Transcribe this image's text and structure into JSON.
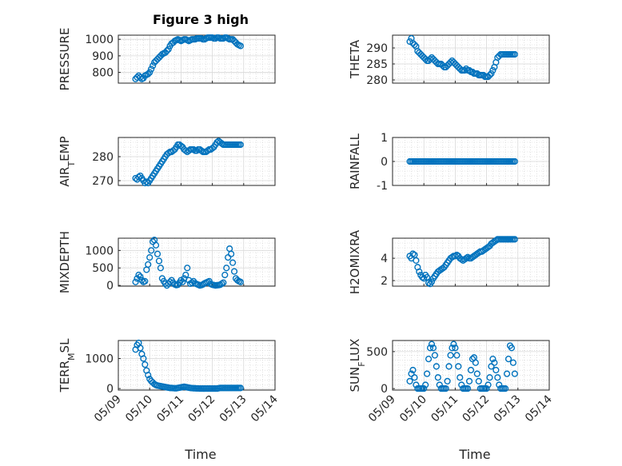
{
  "figure_title": "Figure 3 high",
  "x_axis_label": "Time",
  "marker_color": "#0072bd",
  "x_tick_labels": [
    "05/09",
    "05/10",
    "05/11",
    "05/12",
    "05/13",
    "05/14"
  ],
  "chart_data": [
    {
      "type": "scatter",
      "ylabel": "PRESSURE",
      "xlim": [
        0,
        5
      ],
      "ylim": [
        735,
        1025
      ],
      "yticks": [
        800,
        900,
        1000
      ],
      "x": [
        0.55,
        0.6,
        0.65,
        0.7,
        0.75,
        0.8,
        0.85,
        0.9,
        0.95,
        1.0,
        1.05,
        1.1,
        1.15,
        1.2,
        1.25,
        1.3,
        1.35,
        1.4,
        1.45,
        1.5,
        1.55,
        1.6,
        1.65,
        1.7,
        1.75,
        1.8,
        1.85,
        1.9,
        1.95,
        2.0,
        2.05,
        2.1,
        2.15,
        2.2,
        2.25,
        2.3,
        2.35,
        2.4,
        2.45,
        2.5,
        2.55,
        2.6,
        2.65,
        2.7,
        2.75,
        2.8,
        2.85,
        2.9,
        2.95,
        3.0,
        3.05,
        3.1,
        3.15,
        3.2,
        3.25,
        3.3,
        3.35,
        3.4,
        3.45,
        3.5,
        3.55,
        3.6,
        3.65,
        3.7,
        3.75,
        3.8,
        3.85,
        3.9
      ],
      "y": [
        760,
        770,
        780,
        770,
        760,
        765,
        780,
        785,
        790,
        800,
        820,
        840,
        860,
        870,
        880,
        890,
        900,
        910,
        915,
        920,
        930,
        940,
        960,
        975,
        980,
        990,
        995,
        1000,
        995,
        990,
        995,
        1000,
        1000,
        995,
        990,
        995,
        1000,
        1000,
        1000,
        1005,
        1005,
        1005,
        1005,
        1000,
        1000,
        1005,
        1010,
        1010,
        1010,
        1010,
        1005,
        1005,
        1010,
        1010,
        1005,
        1005,
        1005,
        1010,
        1010,
        1005,
        1000,
        1000,
        1000,
        990,
        980,
        970,
        965,
        960
      ]
    },
    {
      "type": "scatter",
      "ylabel": "THETA",
      "xlim": [
        0,
        5
      ],
      "ylim": [
        279,
        294
      ],
      "yticks": [
        280,
        285,
        290
      ],
      "x": [
        0.55,
        0.6,
        0.65,
        0.7,
        0.75,
        0.8,
        0.85,
        0.9,
        0.95,
        1.0,
        1.05,
        1.1,
        1.15,
        1.2,
        1.25,
        1.3,
        1.35,
        1.4,
        1.45,
        1.5,
        1.55,
        1.6,
        1.65,
        1.7,
        1.75,
        1.8,
        1.85,
        1.9,
        1.95,
        2.0,
        2.05,
        2.1,
        2.15,
        2.2,
        2.25,
        2.3,
        2.35,
        2.4,
        2.45,
        2.5,
        2.55,
        2.6,
        2.65,
        2.7,
        2.75,
        2.8,
        2.85,
        2.9,
        2.95,
        3.0,
        3.05,
        3.1,
        3.15,
        3.2,
        3.25,
        3.3,
        3.35,
        3.4,
        3.45,
        3.5,
        3.55,
        3.6,
        3.65,
        3.7,
        3.75,
        3.8,
        3.85,
        3.9
      ],
      "y": [
        292,
        293,
        291.5,
        291,
        290.5,
        289,
        288.5,
        288,
        287.5,
        287,
        286.5,
        286,
        286,
        286.5,
        287,
        286.5,
        286,
        285.5,
        285,
        285,
        285,
        284.5,
        284,
        284,
        284.5,
        285,
        285.5,
        286,
        285.5,
        285,
        284.5,
        284,
        283.5,
        283,
        283,
        283,
        283.5,
        283,
        283,
        282.5,
        282.5,
        282,
        282,
        282,
        281.5,
        281.5,
        281.5,
        281.5,
        281,
        281,
        281,
        281.5,
        282,
        283,
        284,
        285.5,
        287,
        287.5,
        288,
        288,
        288,
        288,
        288,
        288,
        288,
        288,
        288,
        288
      ]
    },
    {
      "type": "scatter",
      "ylabel": "AIR_TEMP",
      "xlim": [
        0,
        5
      ],
      "ylim": [
        268,
        288
      ],
      "yticks": [
        270,
        280
      ],
      "x": [
        0.55,
        0.6,
        0.65,
        0.7,
        0.75,
        0.8,
        0.85,
        0.9,
        0.95,
        1.0,
        1.05,
        1.1,
        1.15,
        1.2,
        1.25,
        1.3,
        1.35,
        1.4,
        1.45,
        1.5,
        1.55,
        1.6,
        1.65,
        1.7,
        1.75,
        1.8,
        1.85,
        1.9,
        1.95,
        2.0,
        2.05,
        2.1,
        2.15,
        2.2,
        2.25,
        2.3,
        2.35,
        2.4,
        2.45,
        2.5,
        2.55,
        2.6,
        2.65,
        2.7,
        2.75,
        2.8,
        2.85,
        2.9,
        2.95,
        3.0,
        3.05,
        3.1,
        3.15,
        3.2,
        3.25,
        3.3,
        3.35,
        3.4,
        3.45,
        3.5,
        3.55,
        3.6,
        3.65,
        3.7,
        3.75,
        3.8,
        3.85,
        3.9
      ],
      "y": [
        271,
        270.5,
        271.5,
        272,
        271,
        270,
        269,
        269.5,
        269,
        270,
        271,
        272,
        273,
        274,
        275,
        276,
        277,
        278,
        279,
        280,
        281,
        281.5,
        282,
        282,
        282.5,
        283,
        284,
        285,
        285,
        284.5,
        284,
        283,
        282.5,
        282,
        282.5,
        283,
        283,
        283,
        282.5,
        282.5,
        283,
        283,
        282.5,
        282,
        282,
        282,
        282.5,
        283,
        283,
        283.5,
        284,
        285,
        286,
        286.5,
        286,
        285.5,
        285,
        285,
        285,
        285,
        285,
        285,
        285,
        285,
        285,
        285,
        285,
        285
      ]
    },
    {
      "type": "scatter",
      "ylabel": "RAINFALL",
      "xlim": [
        0,
        5
      ],
      "ylim": [
        -1,
        1
      ],
      "yticks": [
        -1,
        0,
        1
      ],
      "x": [
        0.55,
        0.6,
        0.65,
        0.7,
        0.75,
        0.8,
        0.85,
        0.9,
        0.95,
        1.0,
        1.05,
        1.1,
        1.15,
        1.2,
        1.25,
        1.3,
        1.35,
        1.4,
        1.45,
        1.5,
        1.55,
        1.6,
        1.65,
        1.7,
        1.75,
        1.8,
        1.85,
        1.9,
        1.95,
        2.0,
        2.05,
        2.1,
        2.15,
        2.2,
        2.25,
        2.3,
        2.35,
        2.4,
        2.45,
        2.5,
        2.55,
        2.6,
        2.65,
        2.7,
        2.75,
        2.8,
        2.85,
        2.9,
        2.95,
        3.0,
        3.05,
        3.1,
        3.15,
        3.2,
        3.25,
        3.3,
        3.35,
        3.4,
        3.45,
        3.5,
        3.55,
        3.6,
        3.65,
        3.7,
        3.75,
        3.8,
        3.85,
        3.9
      ],
      "y": [
        0,
        0,
        0,
        0,
        0,
        0,
        0,
        0,
        0,
        0,
        0,
        0,
        0,
        0,
        0,
        0,
        0,
        0,
        0,
        0,
        0,
        0,
        0,
        0,
        0,
        0,
        0,
        0,
        0,
        0,
        0,
        0,
        0,
        0,
        0,
        0,
        0,
        0,
        0,
        0,
        0,
        0,
        0,
        0,
        0,
        0,
        0,
        0,
        0,
        0,
        0,
        0,
        0,
        0,
        0,
        0,
        0,
        0,
        0,
        0,
        0,
        0,
        0,
        0,
        0,
        0,
        0,
        0
      ]
    },
    {
      "type": "scatter",
      "ylabel": "MIXDEPTH",
      "xlim": [
        0,
        5
      ],
      "ylim": [
        -20,
        1350
      ],
      "yticks": [
        0,
        500,
        1000
      ],
      "x": [
        0.55,
        0.6,
        0.65,
        0.7,
        0.75,
        0.8,
        0.85,
        0.9,
        0.95,
        1.0,
        1.05,
        1.1,
        1.15,
        1.2,
        1.25,
        1.3,
        1.35,
        1.4,
        1.45,
        1.5,
        1.55,
        1.6,
        1.65,
        1.7,
        1.75,
        1.8,
        1.85,
        1.9,
        1.95,
        2.0,
        2.05,
        2.1,
        2.15,
        2.2,
        2.25,
        2.3,
        2.35,
        2.4,
        2.45,
        2.5,
        2.55,
        2.6,
        2.65,
        2.7,
        2.75,
        2.8,
        2.85,
        2.9,
        2.95,
        3.0,
        3.05,
        3.1,
        3.15,
        3.2,
        3.25,
        3.3,
        3.35,
        3.4,
        3.45,
        3.5,
        3.55,
        3.6,
        3.65,
        3.7,
        3.75,
        3.8,
        3.85,
        3.9
      ],
      "y": [
        100,
        200,
        300,
        250,
        150,
        100,
        120,
        450,
        600,
        800,
        1000,
        1250,
        1300,
        1150,
        900,
        700,
        500,
        200,
        120,
        50,
        0,
        50,
        100,
        150,
        80,
        30,
        10,
        20,
        80,
        150,
        100,
        200,
        300,
        500,
        150,
        50,
        80,
        120,
        60,
        40,
        20,
        0,
        10,
        30,
        60,
        80,
        100,
        120,
        40,
        20,
        10,
        0,
        5,
        10,
        20,
        50,
        80,
        300,
        500,
        800,
        1050,
        900,
        650,
        400,
        200,
        150,
        120,
        100
      ]
    },
    {
      "type": "scatter",
      "ylabel": "H2OMIXRA",
      "xlim": [
        0,
        5
      ],
      "ylim": [
        1.5,
        5.8
      ],
      "yticks": [
        2,
        4
      ],
      "x": [
        0.55,
        0.6,
        0.65,
        0.7,
        0.75,
        0.8,
        0.85,
        0.9,
        0.95,
        1.0,
        1.05,
        1.1,
        1.15,
        1.2,
        1.25,
        1.3,
        1.35,
        1.4,
        1.45,
        1.5,
        1.55,
        1.6,
        1.65,
        1.7,
        1.75,
        1.8,
        1.85,
        1.9,
        1.95,
        2.0,
        2.05,
        2.1,
        2.15,
        2.2,
        2.25,
        2.3,
        2.35,
        2.4,
        2.45,
        2.5,
        2.55,
        2.6,
        2.65,
        2.7,
        2.75,
        2.8,
        2.85,
        2.9,
        2.95,
        3.0,
        3.05,
        3.1,
        3.15,
        3.2,
        3.25,
        3.3,
        3.35,
        3.4,
        3.45,
        3.5,
        3.55,
        3.6,
        3.65,
        3.7,
        3.75,
        3.8,
        3.85,
        3.9
      ],
      "y": [
        4.2,
        4.0,
        4.4,
        4.3,
        3.8,
        3.2,
        2.8,
        2.5,
        2.3,
        2.2,
        2.5,
        2.3,
        1.8,
        1.7,
        1.9,
        2.2,
        2.4,
        2.6,
        2.8,
        2.9,
        3.0,
        3.1,
        3.2,
        3.4,
        3.6,
        3.8,
        4.0,
        4.1,
        4.2,
        4.2,
        4.3,
        4.2,
        4.0,
        3.9,
        3.8,
        3.9,
        4.0,
        4.1,
        4.0,
        4.0,
        4.1,
        4.2,
        4.3,
        4.4,
        4.5,
        4.6,
        4.6,
        4.7,
        4.8,
        4.9,
        5.0,
        5.1,
        5.3,
        5.4,
        5.5,
        5.6,
        5.7,
        5.7,
        5.7,
        5.7,
        5.7,
        5.7,
        5.7,
        5.7,
        5.7,
        5.7,
        5.7,
        5.7
      ]
    },
    {
      "type": "scatter",
      "ylabel": "TERR_MSL",
      "xlim": [
        0,
        5
      ],
      "ylim": [
        -50,
        1600
      ],
      "yticks": [
        0,
        1000
      ],
      "x": [
        0.55,
        0.6,
        0.65,
        0.7,
        0.75,
        0.8,
        0.85,
        0.9,
        0.95,
        1.0,
        1.05,
        1.1,
        1.15,
        1.2,
        1.25,
        1.3,
        1.35,
        1.4,
        1.45,
        1.5,
        1.55,
        1.6,
        1.65,
        1.7,
        1.75,
        1.8,
        1.85,
        1.9,
        1.95,
        2.0,
        2.05,
        2.1,
        2.15,
        2.2,
        2.25,
        2.3,
        2.35,
        2.4,
        2.45,
        2.5,
        2.55,
        2.6,
        2.65,
        2.7,
        2.75,
        2.8,
        2.85,
        2.9,
        2.95,
        3.0,
        3.05,
        3.1,
        3.15,
        3.2,
        3.25,
        3.3,
        3.35,
        3.4,
        3.45,
        3.5,
        3.55,
        3.6,
        3.65,
        3.7,
        3.75,
        3.8,
        3.85,
        3.9
      ],
      "y": [
        1300,
        1450,
        1520,
        1350,
        1150,
        1000,
        800,
        600,
        450,
        320,
        250,
        200,
        150,
        120,
        100,
        90,
        80,
        70,
        60,
        50,
        40,
        30,
        20,
        20,
        15,
        10,
        10,
        20,
        30,
        40,
        50,
        60,
        50,
        40,
        30,
        20,
        15,
        10,
        10,
        5,
        5,
        0,
        0,
        0,
        0,
        0,
        0,
        0,
        0,
        0,
        0,
        0,
        0,
        10,
        20,
        20,
        20,
        20,
        20,
        20,
        20,
        20,
        20,
        20,
        20,
        20,
        20,
        20
      ]
    },
    {
      "type": "scatter",
      "ylabel": "SUN_FLUX",
      "xlim": [
        0,
        5
      ],
      "ylim": [
        -20,
        650
      ],
      "yticks": [
        0,
        500
      ],
      "x": [
        0.55,
        0.6,
        0.65,
        0.7,
        0.75,
        0.8,
        0.85,
        0.9,
        0.95,
        1.0,
        1.05,
        1.1,
        1.15,
        1.2,
        1.25,
        1.3,
        1.35,
        1.4,
        1.45,
        1.5,
        1.55,
        1.6,
        1.65,
        1.7,
        1.75,
        1.8,
        1.85,
        1.9,
        1.95,
        2.0,
        2.05,
        2.1,
        2.15,
        2.2,
        2.25,
        2.3,
        2.35,
        2.4,
        2.45,
        2.5,
        2.55,
        2.6,
        2.65,
        2.7,
        2.75,
        2.8,
        2.85,
        2.9,
        2.95,
        3.0,
        3.05,
        3.1,
        3.15,
        3.2,
        3.25,
        3.3,
        3.35,
        3.4,
        3.45,
        3.5,
        3.55,
        3.6,
        3.65,
        3.7,
        3.75,
        3.8,
        3.85,
        3.9
      ],
      "y": [
        100,
        200,
        250,
        150,
        50,
        0,
        0,
        0,
        0,
        0,
        50,
        200,
        400,
        550,
        600,
        550,
        450,
        300,
        150,
        50,
        0,
        0,
        0,
        0,
        100,
        300,
        450,
        550,
        600,
        550,
        450,
        300,
        150,
        50,
        0,
        0,
        0,
        0,
        100,
        250,
        400,
        420,
        350,
        200,
        100,
        0,
        0,
        0,
        0,
        0,
        50,
        150,
        300,
        400,
        350,
        250,
        150,
        50,
        0,
        0,
        0,
        0,
        200,
        400,
        580,
        550,
        350,
        200
      ]
    }
  ]
}
